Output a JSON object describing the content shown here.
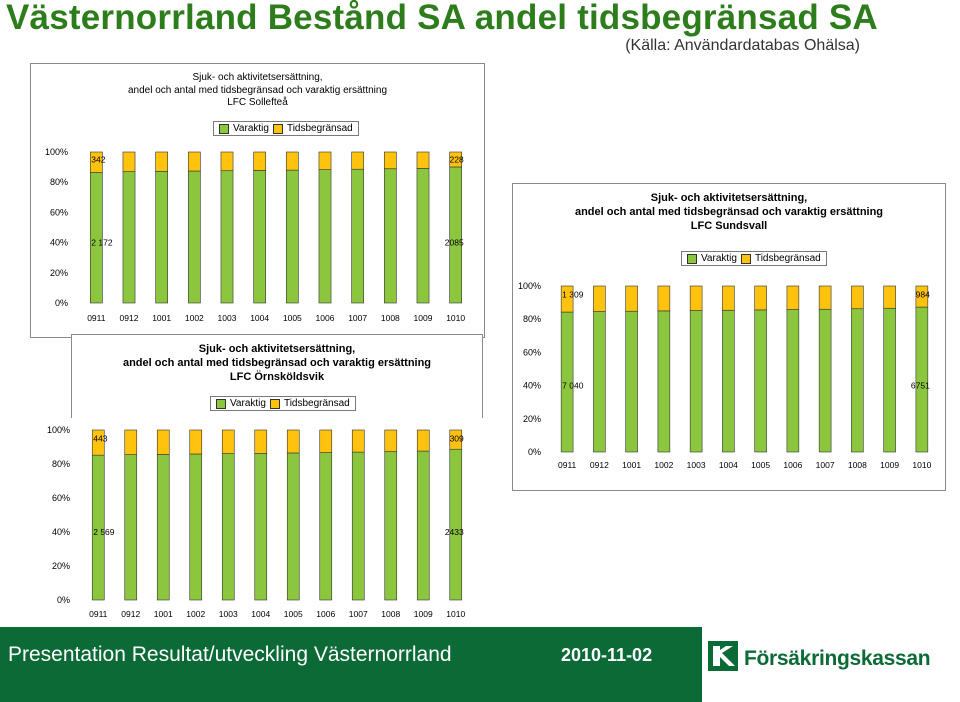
{
  "page": {
    "title": "Västernorrland Bestånd SA andel tidsbegränsad SA",
    "subtitle": "(Källa: Användardatabas Ohälsa)"
  },
  "colors": {
    "varaktig": "#8cc63e",
    "tidsbegransad": "#ffc20e",
    "frame": "#8a8a8a"
  },
  "chart_data": [
    {
      "type": "bar",
      "stacked": "percent",
      "title_lines": [
        "Sjuk- och aktivitetsersättning,",
        "andel och antal med tidsbegränsad och varaktig ersättning",
        "LFC Sollefteå"
      ],
      "legend": [
        "Varaktig",
        "Tidsbegränsad"
      ],
      "legend_position": "top",
      "categories": [
        "0911",
        "0912",
        "1001",
        "1002",
        "1003",
        "1004",
        "1005",
        "1006",
        "1007",
        "1008",
        "1009",
        "1010"
      ],
      "series": [
        {
          "name": "Varaktig",
          "values": [
            86.4,
            87.0,
            87.2,
            87.4,
            87.6,
            87.8,
            88.0,
            88.3,
            88.6,
            88.9,
            89.2,
            90.1
          ]
        },
        {
          "name": "Tidsbegränsad",
          "values": [
            13.6,
            13.0,
            12.8,
            12.6,
            12.4,
            12.2,
            12.0,
            11.7,
            11.4,
            11.1,
            10.8,
            9.9
          ]
        }
      ],
      "yticks": [
        "0%",
        "20%",
        "40%",
        "60%",
        "80%",
        "100%"
      ],
      "ylim": [
        0,
        100
      ],
      "annotations": [
        {
          "text": "342",
          "category": "0911",
          "level": 95
        },
        {
          "text": "228",
          "category": "1010",
          "level": 95
        },
        {
          "text": "2 172",
          "category": "0911",
          "level": 40
        },
        {
          "text": "2085",
          "category": "1010",
          "level": 40
        }
      ]
    },
    {
      "type": "bar",
      "stacked": "percent",
      "title_lines": [
        "Sjuk- och aktivitetsersättning,",
        "andel och antal med tidsbegränsad och varaktig ersättning",
        "LFC Sundsvall"
      ],
      "legend": [
        "Varaktig",
        "Tidsbegränsad"
      ],
      "legend_position": "top",
      "categories": [
        "0911",
        "0912",
        "1001",
        "1002",
        "1003",
        "1004",
        "1005",
        "1006",
        "1007",
        "1008",
        "1009",
        "1010"
      ],
      "series": [
        {
          "name": "Varaktig",
          "values": [
            84.3,
            84.6,
            84.8,
            85.0,
            85.2,
            85.4,
            85.6,
            85.8,
            86.0,
            86.3,
            86.6,
            87.3
          ]
        },
        {
          "name": "Tidsbegränsad",
          "values": [
            15.7,
            15.4,
            15.2,
            15.0,
            14.8,
            14.6,
            14.4,
            14.2,
            14.0,
            13.7,
            13.4,
            12.7
          ]
        }
      ],
      "yticks": [
        "0%",
        "20%",
        "40%",
        "60%",
        "80%",
        "100%"
      ],
      "ylim": [
        0,
        100
      ],
      "annotations": [
        {
          "text": "1 309",
          "category": "0911",
          "level": 95
        },
        {
          "text": "984",
          "category": "1010",
          "level": 95
        },
        {
          "text": "7 040",
          "category": "0911",
          "level": 40
        },
        {
          "text": "6751",
          "category": "1010",
          "level": 40
        }
      ]
    },
    {
      "type": "bar",
      "stacked": "percent",
      "title_lines": [
        "Sjuk- och aktivitetsersättning,",
        "andel och antal med tidsbegränsad och varaktig ersättning",
        "LFC Örnsköldsvik"
      ],
      "legend": [
        "Varaktig",
        "Tidsbegränsad"
      ],
      "legend_position": "top",
      "categories": [
        "0911",
        "0912",
        "1001",
        "1002",
        "1003",
        "1004",
        "1005",
        "1006",
        "1007",
        "1008",
        "1009",
        "1010"
      ],
      "series": [
        {
          "name": "Varaktig",
          "values": [
            85.2,
            85.5,
            85.7,
            85.9,
            86.1,
            86.3,
            86.5,
            86.7,
            87.0,
            87.3,
            87.6,
            88.7
          ]
        },
        {
          "name": "Tidsbegränsad",
          "values": [
            14.8,
            14.5,
            14.3,
            14.1,
            13.9,
            13.7,
            13.5,
            13.3,
            13.0,
            12.7,
            12.4,
            11.3
          ]
        }
      ],
      "yticks": [
        "0%",
        "20%",
        "40%",
        "60%",
        "80%",
        "100%"
      ],
      "ylim": [
        0,
        100
      ],
      "annotations": [
        {
          "text": "443",
          "category": "0911",
          "level": 95
        },
        {
          "text": "309",
          "category": "1010",
          "level": 95
        },
        {
          "text": "2 569",
          "category": "0911",
          "level": 40
        },
        {
          "text": "2433",
          "category": "1010",
          "level": 40
        }
      ]
    }
  ],
  "footer": {
    "presentation": "Presentation Resultat/utveckling Västernorrland",
    "date": "2010-11-02",
    "brand": "Försäkringskassan"
  }
}
